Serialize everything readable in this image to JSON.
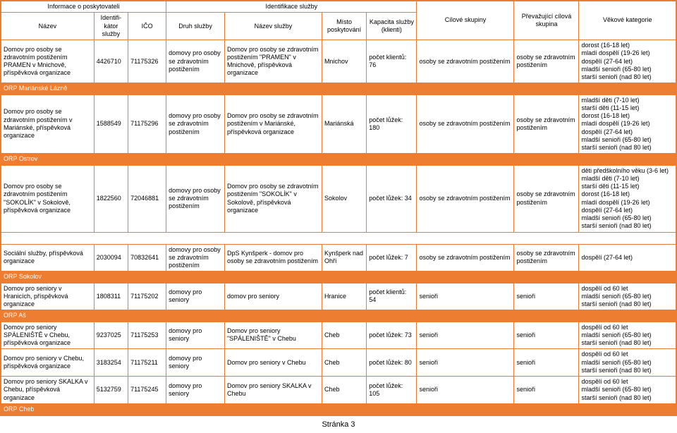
{
  "header": {
    "informace": "Informace o poskytovateli",
    "identifikace": "Identifikace služby",
    "nazev": "Název",
    "identifikator": "Identifi-kátor služby",
    "ico": "IČO",
    "druh": "Druh služby",
    "nazev_sluzby": "Název služby",
    "misto": "Místo poskytování",
    "kapacita": "Kapacita služby (klienti)",
    "cilove": "Cílové skupiny",
    "prevazujici": "Převažující cílová skupina",
    "vekove": "Věkové kategorie"
  },
  "rows": [
    {
      "nazev": "Domov pro osoby se zdravotním postižením PRAMEN v Mnichově, příspěvková organizace",
      "id": "4426710",
      "ico": "71175326",
      "druh": "domovy pro osoby se zdravotním postižením",
      "nazev_sluzby": "Domov pro osoby se zdravotním postižením \"PRAMEN\" v Mnichově, příspěvková organizace",
      "misto": "Mnichov",
      "kapacita": "počet klientů: 76",
      "cilove": "osoby se zdravotním postižením",
      "prevazujici": "osoby se zdravotním postižením",
      "vekove": "dorost (16-18 let)\nmladí dospělí (19-26 let)\ndospělí (27-64 let)\nmladší senioři (65-80 let)\nstarší senioři (nad 80 let)"
    },
    {
      "nazev": "Domov pro osoby se zdravotním postižením v Mariánské, příspěvková organizace",
      "id": "1588549",
      "ico": "71175296",
      "druh": "domovy pro osoby se zdravotním postižením",
      "nazev_sluzby": "Domov pro osoby se zdravotním postižením v Mariánské, příspěvková organizace",
      "misto": "Mariánská",
      "kapacita": "počet lůžek: 180",
      "cilove": "osoby se zdravotním postižením",
      "prevazujici": "osoby se zdravotním postižením",
      "vekove": "mladší děti (7-10 let)\nstarší děti (11-15 let)\ndorost (16-18 let)\nmladí dospělí (19-26 let)\ndospělí (27-64 let)\nmladší senioři (65-80 let)\nstarší senioři (nad 80 let)"
    },
    {
      "nazev": "Domov pro osoby se zdravotním postižením \"SOKOLÍK\" v Sokolově, příspěvková organizace",
      "id": "1822560",
      "ico": "72046881",
      "druh": "domovy pro osoby se zdravotním postižením",
      "nazev_sluzby": "Domov pro osoby se zdravotním postižením \"SOKOLÍK\" v Sokolově, příspěvková organizace",
      "misto": "Sokolov",
      "kapacita": "počet lůžek: 34",
      "cilove": "osoby se zdravotním postižením",
      "prevazujici": "osoby se zdravotním postižením",
      "vekove": "děti předškolního věku (3-6 let)\nmladší děti (7-10 let)\nstarší děti (11-15 let)\ndorost (16-18 let)\nmladí dospělí (19-26 let)\ndospělí (27-64 let)\nmladší senioři (65-80 let)\nstarší senioři (nad 80 let)"
    },
    {
      "nazev": "Sociální služby, příspěvková organizace",
      "id": "2030094",
      "ico": "70832641",
      "druh": "domovy pro osoby se zdravotním postižením",
      "nazev_sluzby": "DpS Kynšperk - domov pro osoby se zdravotním postižením",
      "misto": "Kynšperk nad Ohří",
      "kapacita": "počet lůžek: 7",
      "cilove": "osoby se zdravotním postižením",
      "prevazujici": "osoby se zdravotním postižením",
      "vekove": "dospělí (27-64 let)"
    },
    {
      "nazev": "Domov pro seniory v Hranicích, příspěvková organizace",
      "id": "1808311",
      "ico": "71175202",
      "druh": "domovy pro seniory",
      "nazev_sluzby": "domov pro seniory",
      "misto": "Hranice",
      "kapacita": "počet klientů: 54",
      "cilove": "senioři",
      "prevazujici": "senioři",
      "vekove": "dospělí od 60 let\nmladší senioři (65-80 let)\nstarší senioři (nad 80 let)"
    },
    {
      "nazev": "Domov pro seniory SPÁLENIŠTĚ v Chebu, příspěvková organizace",
      "id": "9237025",
      "ico": "71175253",
      "druh": "domovy pro seniory",
      "nazev_sluzby": "Domov pro seniory \"SPÁLENIŠTĚ\" v Chebu",
      "misto": "Cheb",
      "kapacita": "počet lůžek: 73",
      "cilove": "senioři",
      "prevazujici": "senioři",
      "vekove": "dospělí od 60 let\nmladší senioři (65-80 let)\nstarší senioři (nad 80 let)"
    },
    {
      "nazev": "Domov pro seniory v Chebu, příspěvková organizace",
      "id": "3183254",
      "ico": "71175211",
      "druh": "domovy pro seniory",
      "nazev_sluzby": "Domov pro seniory  v Chebu",
      "misto": "Cheb",
      "kapacita": "počet lůžek: 80",
      "cilove": "senioři",
      "prevazujici": "senioři",
      "vekove": "dospělí od 60 let\nmladší senioři (65-80 let)\nstarší senioři (nad 80 let)"
    },
    {
      "nazev": "Domov pro seniory SKALKA v Chebu, příspěvková organizace",
      "id": "5132759",
      "ico": "71175245",
      "druh": "domovy pro seniory",
      "nazev_sluzby": "Domov pro seniory SKALKA v Chebu",
      "misto": "Cheb",
      "kapacita": "počet lůžek: 105",
      "cilove": "senioři",
      "prevazujici": "senioři",
      "vekove": "dospělí od 60 let\nmladší senioři (65-80 let)\nstarší senioři (nad 80 let)"
    }
  ],
  "orp": {
    "marianske": "ORP Mariánské Lázně",
    "ostrov": "ORP Ostrov",
    "sokolov": "ORP Sokolov",
    "as": "ORP Aš",
    "cheb": "ORP Cheb"
  },
  "footer": "Stránka 3"
}
